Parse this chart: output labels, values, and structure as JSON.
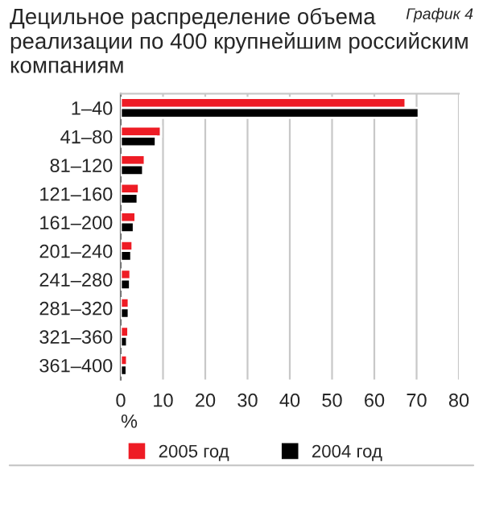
{
  "chart_data": {
    "type": "bar",
    "orientation": "horizontal",
    "title": "Децильное распределение объема реализации по 400 крупнейшим российским компаниям",
    "annotations": [
      "График 4"
    ],
    "xlabel": "%",
    "categories": [
      "1–40",
      "41–80",
      "81–120",
      "121–160",
      "161–200",
      "201–240",
      "241–280",
      "281–320",
      "321–360",
      "361–400"
    ],
    "series": [
      {
        "name": "2005 год",
        "color": "#ee1c25",
        "values": [
          67.4,
          9.5,
          5.7,
          4.3,
          3.5,
          2.8,
          2.3,
          1.9,
          1.8,
          1.5
        ]
      },
      {
        "name": "2004 год",
        "color": "#000000",
        "values": [
          70.5,
          8.3,
          5.3,
          4.0,
          3.1,
          2.5,
          2.2,
          1.9,
          1.5,
          1.4
        ]
      }
    ],
    "xlim": [
      0,
      80
    ],
    "xticks": [
      0,
      10,
      20,
      30,
      40,
      50,
      60,
      70,
      80
    ],
    "grid": "x",
    "legend": "bottom"
  }
}
